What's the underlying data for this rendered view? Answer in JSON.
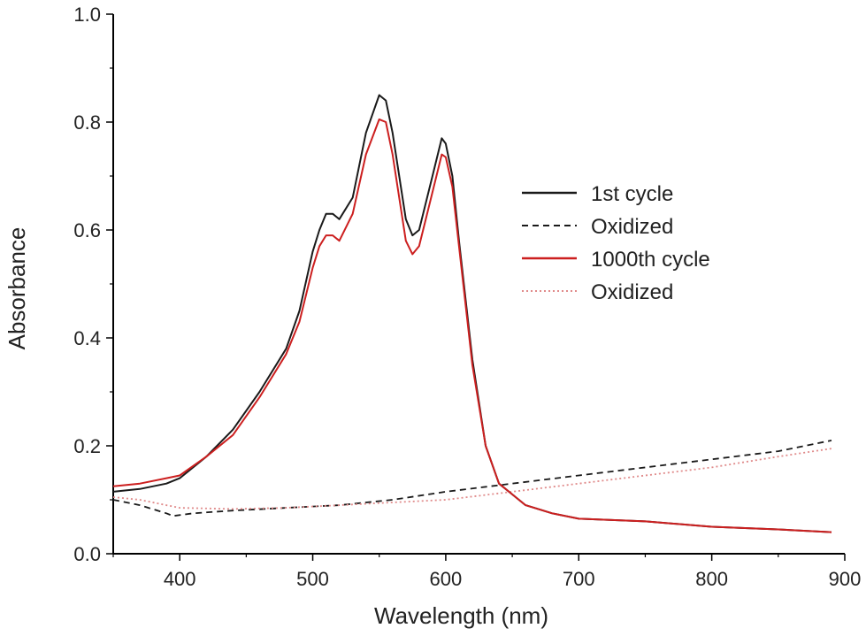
{
  "chart_data": {
    "type": "line",
    "title": "",
    "xlabel": "Wavelength (nm)",
    "ylabel": "Absorbance",
    "xlim": [
      350,
      900
    ],
    "ylim": [
      0.0,
      1.0
    ],
    "xticks": [
      400,
      500,
      600,
      700,
      800,
      900
    ],
    "yticks": [
      0.0,
      0.2,
      0.4,
      0.6,
      0.8,
      1.0
    ],
    "ytick_labels": [
      "0.0",
      "0.2",
      "0.4",
      "0.6",
      "0.8",
      "1.0"
    ],
    "grid": false,
    "legend_position": "right",
    "series": [
      {
        "name": "1st cycle",
        "color": "#1a1a1a",
        "style": "solid",
        "x": [
          350,
          370,
          390,
          400,
          420,
          440,
          460,
          480,
          490,
          500,
          505,
          510,
          515,
          520,
          530,
          540,
          550,
          555,
          560,
          570,
          575,
          580,
          590,
          597,
          600,
          605,
          610,
          620,
          630,
          640,
          650,
          660,
          680,
          700,
          750,
          800,
          850,
          890
        ],
        "y": [
          0.115,
          0.12,
          0.13,
          0.14,
          0.18,
          0.23,
          0.3,
          0.38,
          0.45,
          0.56,
          0.6,
          0.63,
          0.63,
          0.62,
          0.66,
          0.78,
          0.85,
          0.84,
          0.78,
          0.62,
          0.59,
          0.6,
          0.7,
          0.77,
          0.76,
          0.7,
          0.58,
          0.36,
          0.2,
          0.13,
          0.11,
          0.09,
          0.075,
          0.065,
          0.06,
          0.05,
          0.045,
          0.04
        ]
      },
      {
        "name": "Oxidized",
        "color": "#1a1a1a",
        "style": "dashed",
        "x": [
          350,
          370,
          390,
          395,
          410,
          440,
          480,
          520,
          560,
          600,
          650,
          700,
          750,
          800,
          850,
          890
        ],
        "y": [
          0.1,
          0.09,
          0.075,
          0.07,
          0.075,
          0.08,
          0.085,
          0.09,
          0.1,
          0.115,
          0.13,
          0.145,
          0.16,
          0.175,
          0.19,
          0.21
        ]
      },
      {
        "name": "1000th cycle",
        "color": "#cc1f1f",
        "style": "solid",
        "x": [
          350,
          370,
          390,
          400,
          420,
          440,
          460,
          480,
          490,
          500,
          505,
          510,
          515,
          520,
          530,
          540,
          550,
          555,
          560,
          570,
          575,
          580,
          590,
          597,
          600,
          605,
          610,
          620,
          630,
          640,
          650,
          660,
          680,
          700,
          750,
          800,
          850,
          890
        ],
        "y": [
          0.125,
          0.13,
          0.14,
          0.145,
          0.18,
          0.22,
          0.29,
          0.37,
          0.43,
          0.53,
          0.57,
          0.59,
          0.59,
          0.58,
          0.63,
          0.74,
          0.805,
          0.8,
          0.74,
          0.58,
          0.555,
          0.57,
          0.67,
          0.74,
          0.735,
          0.68,
          0.57,
          0.35,
          0.2,
          0.13,
          0.11,
          0.09,
          0.075,
          0.065,
          0.06,
          0.05,
          0.045,
          0.04
        ]
      },
      {
        "name": "Oxidized",
        "color": "#e08a8a",
        "style": "dotted",
        "x": [
          350,
          370,
          390,
          400,
          440,
          480,
          520,
          560,
          600,
          650,
          700,
          750,
          800,
          850,
          890
        ],
        "y": [
          0.105,
          0.1,
          0.09,
          0.085,
          0.083,
          0.085,
          0.09,
          0.095,
          0.1,
          0.115,
          0.13,
          0.145,
          0.16,
          0.18,
          0.195
        ]
      }
    ]
  }
}
